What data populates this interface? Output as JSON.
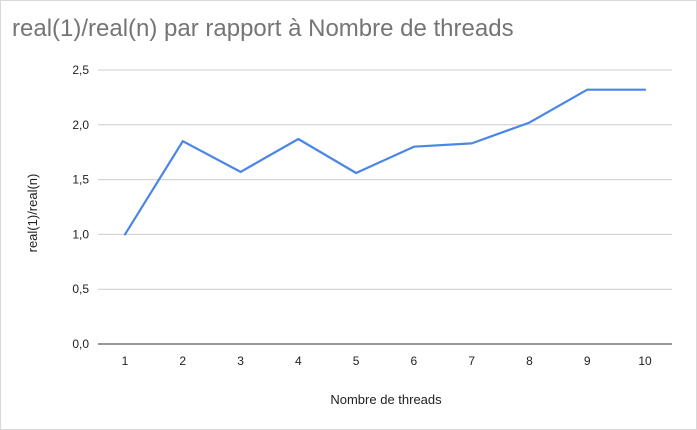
{
  "chart_data": {
    "type": "line",
    "title": "real(1)/real(n) par rapport à Nombre de threads",
    "xlabel": "Nombre de threads",
    "ylabel": "real(1)/real(n)",
    "x": [
      1,
      2,
      3,
      4,
      5,
      6,
      7,
      8,
      9,
      10
    ],
    "x_tick_labels": [
      "1",
      "2",
      "3",
      "4",
      "5",
      "6",
      "7",
      "8",
      "9",
      "10"
    ],
    "series": [
      {
        "values": [
          1.0,
          1.85,
          1.57,
          1.87,
          1.56,
          1.8,
          1.83,
          2.02,
          2.32,
          2.32
        ],
        "color": "#4a86e8"
      }
    ],
    "ylim": [
      0,
      2.5
    ],
    "y_ticks": [
      0,
      0.5,
      1.0,
      1.5,
      2.0,
      2.5
    ],
    "y_tick_labels": [
      "0,0",
      "0,5",
      "1,0",
      "1,5",
      "2,0",
      "2,5"
    ],
    "grid": true,
    "legend": "none"
  }
}
